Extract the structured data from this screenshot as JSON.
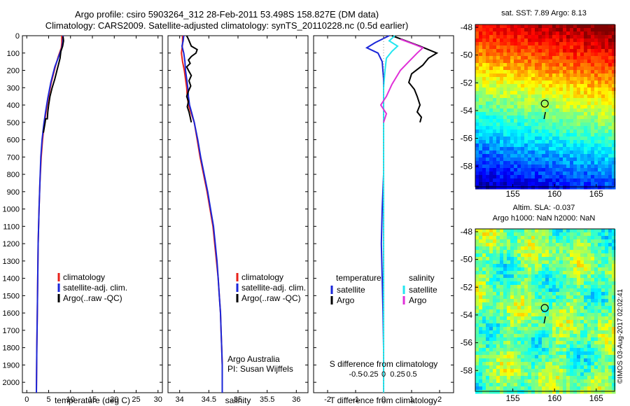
{
  "title": {
    "line1": "Argo profile: csiro 5903264_312 28-Feb-2011 53.498S 158.827E (DM data)",
    "line2": "Climatology: CARS2009. Satellite-adjusted climatology: synTS_20110228.nc (0.5d earlier)"
  },
  "colors": {
    "climatology": "#e8211a",
    "satellite": "#1a26d8",
    "argo": "#000000",
    "salinity_satellite": "#22e6f0",
    "salinity_argo": "#e030d8"
  },
  "chart_data": [
    {
      "type": "line",
      "id": "temperature",
      "xlabel": "temperature (deg C)",
      "ylabel": "",
      "xlim": [
        -1,
        31
      ],
      "ylim": [
        2060,
        0
      ],
      "xticks": [
        0,
        5,
        10,
        15,
        20,
        25,
        30
      ],
      "yticks": [
        0,
        100,
        200,
        300,
        400,
        500,
        600,
        700,
        800,
        900,
        1000,
        1100,
        1200,
        1300,
        1400,
        1500,
        1600,
        1700,
        1800,
        1900,
        2000
      ],
      "legend": [
        "climatology",
        "satellite-adj. clim.",
        "Argo(..raw -QC)"
      ],
      "series": [
        {
          "name": "climatology",
          "points": [
            [
              8.0,
              0
            ],
            [
              8.0,
              40
            ],
            [
              7.9,
              70
            ],
            [
              7.2,
              120
            ],
            [
              6.5,
              180
            ],
            [
              5.6,
              270
            ],
            [
              4.9,
              360
            ],
            [
              4.4,
              440
            ],
            [
              4.0,
              510
            ],
            [
              3.6,
              600
            ],
            [
              3.3,
              700
            ],
            [
              3.0,
              850
            ],
            [
              2.8,
              1000
            ],
            [
              2.6,
              1200
            ],
            [
              2.5,
              1400
            ],
            [
              2.4,
              1600
            ],
            [
              2.3,
              1800
            ],
            [
              2.2,
              2060
            ]
          ]
        },
        {
          "name": "satellite-adj. clim.",
          "points": [
            [
              8.3,
              0
            ],
            [
              8.2,
              40
            ],
            [
              8.0,
              70
            ],
            [
              7.3,
              120
            ],
            [
              6.4,
              180
            ],
            [
              5.5,
              270
            ],
            [
              4.8,
              360
            ],
            [
              4.3,
              440
            ],
            [
              3.9,
              510
            ],
            [
              3.5,
              600
            ],
            [
              3.2,
              700
            ],
            [
              3.0,
              850
            ],
            [
              2.8,
              1000
            ],
            [
              2.6,
              1200
            ],
            [
              2.5,
              1400
            ],
            [
              2.4,
              1600
            ],
            [
              2.3,
              1800
            ],
            [
              2.2,
              2060
            ]
          ]
        },
        {
          "name": "Argo(..raw -QC)",
          "points": [
            [
              8.3,
              5
            ],
            [
              8.4,
              30
            ],
            [
              8.2,
              60
            ],
            [
              7.8,
              90
            ],
            [
              7.6,
              130
            ],
            [
              7.2,
              170
            ],
            [
              6.9,
              200
            ],
            [
              6.4,
              250
            ],
            [
              5.8,
              300
            ],
            [
              5.3,
              350
            ],
            [
              5.0,
              400
            ],
            [
              4.8,
              440
            ],
            [
              4.7,
              480
            ],
            [
              4.3,
              480
            ],
            [
              4.2,
              500
            ],
            [
              3.8,
              560
            ]
          ]
        }
      ]
    },
    {
      "type": "line",
      "id": "salinity",
      "xlabel": "salinity",
      "ylabel": "",
      "xlim": [
        33.8,
        36.2
      ],
      "ylim": [
        2060,
        0
      ],
      "xticks": [
        34,
        34.5,
        35,
        35.5,
        36
      ],
      "legend": [
        "climatology",
        "satellite-adj. clim.",
        "Argo(..raw -QC)"
      ],
      "annotations": [
        "Argo Australia",
        "PI: Susan Wijffels"
      ],
      "series": [
        {
          "name": "climatology",
          "points": [
            [
              34.05,
              0
            ],
            [
              34.05,
              50
            ],
            [
              34.03,
              100
            ],
            [
              34.05,
              150
            ],
            [
              34.08,
              200
            ],
            [
              34.1,
              250
            ],
            [
              34.12,
              300
            ],
            [
              34.13,
              350
            ],
            [
              34.15,
              400
            ],
            [
              34.2,
              450
            ],
            [
              34.25,
              500
            ],
            [
              34.3,
              600
            ],
            [
              34.35,
              700
            ],
            [
              34.41,
              800
            ],
            [
              34.47,
              900
            ],
            [
              34.52,
              1000
            ],
            [
              34.57,
              1100
            ],
            [
              34.6,
              1200
            ],
            [
              34.63,
              1300
            ],
            [
              34.66,
              1400
            ],
            [
              34.68,
              1500
            ],
            [
              34.7,
              1600
            ],
            [
              34.71,
              1700
            ],
            [
              34.72,
              1800
            ],
            [
              34.73,
              1900
            ],
            [
              34.73,
              2060
            ]
          ]
        },
        {
          "name": "satellite-adj. clim.",
          "points": [
            [
              34.07,
              0
            ],
            [
              34.06,
              30
            ],
            [
              34.04,
              60
            ],
            [
              34.07,
              100
            ],
            [
              34.09,
              150
            ],
            [
              34.1,
              200
            ],
            [
              34.12,
              250
            ],
            [
              34.14,
              300
            ],
            [
              34.15,
              350
            ],
            [
              34.17,
              400
            ],
            [
              34.21,
              450
            ],
            [
              34.25,
              500
            ],
            [
              34.31,
              600
            ],
            [
              34.36,
              700
            ],
            [
              34.42,
              800
            ],
            [
              34.48,
              900
            ],
            [
              34.53,
              1000
            ],
            [
              34.58,
              1100
            ],
            [
              34.61,
              1200
            ],
            [
              34.64,
              1300
            ],
            [
              34.66,
              1400
            ],
            [
              34.68,
              1500
            ],
            [
              34.7,
              1600
            ],
            [
              34.71,
              1700
            ],
            [
              34.72,
              1800
            ],
            [
              34.73,
              1900
            ],
            [
              34.73,
              2060
            ]
          ]
        },
        {
          "name": "Argo(..raw -QC)",
          "points": [
            [
              34.12,
              0
            ],
            [
              34.15,
              20
            ],
            [
              34.2,
              60
            ],
            [
              34.3,
              80
            ],
            [
              34.28,
              100
            ],
            [
              34.2,
              120
            ],
            [
              34.15,
              140
            ],
            [
              34.18,
              160
            ],
            [
              34.12,
              180
            ],
            [
              34.15,
              200
            ],
            [
              34.2,
              230
            ],
            [
              34.16,
              260
            ],
            [
              34.19,
              290
            ],
            [
              34.15,
              320
            ],
            [
              34.12,
              350
            ],
            [
              34.15,
              380
            ],
            [
              34.13,
              410
            ],
            [
              34.16,
              440
            ],
            [
              34.18,
              470
            ],
            [
              34.2,
              500
            ]
          ]
        }
      ]
    },
    {
      "type": "line",
      "id": "difference",
      "xlabel": "T difference from climatology",
      "xlabel2": "S difference from climatology",
      "ylabel": "",
      "xlim": [
        -2.5,
        2.5
      ],
      "ylim": [
        2060,
        0
      ],
      "xticks": [
        -2,
        -1,
        0,
        1,
        2
      ],
      "xticks_s": [
        -0.5,
        -0.25,
        0,
        0.25,
        0.5
      ],
      "legend_headers": [
        "temperature",
        "salinity"
      ],
      "legend": [
        "satellite",
        "Argo",
        "satellite",
        "Argo"
      ],
      "series": [
        {
          "name": "temperature satellite",
          "points": [
            [
              0.2,
              0
            ],
            [
              -0.3,
              40
            ],
            [
              -0.6,
              70
            ],
            [
              -0.2,
              100
            ],
            [
              -0.05,
              150
            ],
            [
              0,
              250
            ],
            [
              0,
              400
            ],
            [
              0,
              600
            ],
            [
              0,
              800
            ],
            [
              -0.05,
              1000
            ],
            [
              -0.08,
              1200
            ],
            [
              -0.05,
              1400
            ],
            [
              -0.02,
              1600
            ],
            [
              0,
              1800
            ],
            [
              0,
              2060
            ]
          ]
        },
        {
          "name": "temperature Argo",
          "points": [
            [
              0.3,
              0
            ],
            [
              0.8,
              30
            ],
            [
              1.3,
              60
            ],
            [
              1.9,
              100
            ],
            [
              1.6,
              130
            ],
            [
              1.4,
              170
            ],
            [
              1.0,
              220
            ],
            [
              0.9,
              270
            ],
            [
              1.1,
              310
            ],
            [
              1.2,
              350
            ],
            [
              1.3,
              400
            ],
            [
              1.2,
              440
            ],
            [
              1.35,
              470
            ],
            [
              1.3,
              500
            ]
          ]
        },
        {
          "name": "salinity satellite",
          "points": [
            [
              0.4,
              0
            ],
            [
              0.2,
              30
            ],
            [
              0.5,
              60
            ],
            [
              0.3,
              90
            ],
            [
              0.1,
              130
            ],
            [
              0.05,
              200
            ],
            [
              0,
              300
            ],
            [
              0,
              500
            ],
            [
              0,
              800
            ],
            [
              0,
              1200
            ],
            [
              0,
              1600
            ],
            [
              0,
              2060
            ]
          ]
        },
        {
          "name": "salinity Argo",
          "points": [
            [
              0.6,
              20
            ],
            [
              1.1,
              50
            ],
            [
              1.4,
              70
            ],
            [
              1.2,
              100
            ],
            [
              0.9,
              150
            ],
            [
              0.6,
              200
            ],
            [
              0.3,
              280
            ],
            [
              0.1,
              350
            ],
            [
              -0.1,
              400
            ],
            [
              0.1,
              450
            ],
            [
              0,
              500
            ]
          ]
        }
      ]
    },
    {
      "type": "heatmap",
      "id": "sst_map",
      "title": "sat. SST: 7.89  Argo: 8.13",
      "xlim": [
        150.5,
        167.2
      ],
      "ylim": [
        -59.5,
        -47.8
      ],
      "xticks": [
        155,
        160,
        165
      ],
      "yticks": [
        -48,
        -50,
        -52,
        -54,
        -56,
        -58
      ],
      "marker": {
        "lon": 158.827,
        "lat": -53.498
      }
    },
    {
      "type": "heatmap",
      "id": "sla_map",
      "title_line1": "Altim. SLA: -0.037",
      "title_line2": "Argo h1000: NaN h2000: NaN",
      "xlim": [
        150.5,
        167.2
      ],
      "ylim": [
        -59.5,
        -47.8
      ],
      "xticks": [
        155,
        160,
        165
      ],
      "yticks": [
        -48,
        -50,
        -52,
        -54,
        -56,
        -58
      ],
      "marker": {
        "lon": 158.827,
        "lat": -53.498
      }
    }
  ],
  "credit": "©IMOS 03-Aug-2017 02:02:41"
}
